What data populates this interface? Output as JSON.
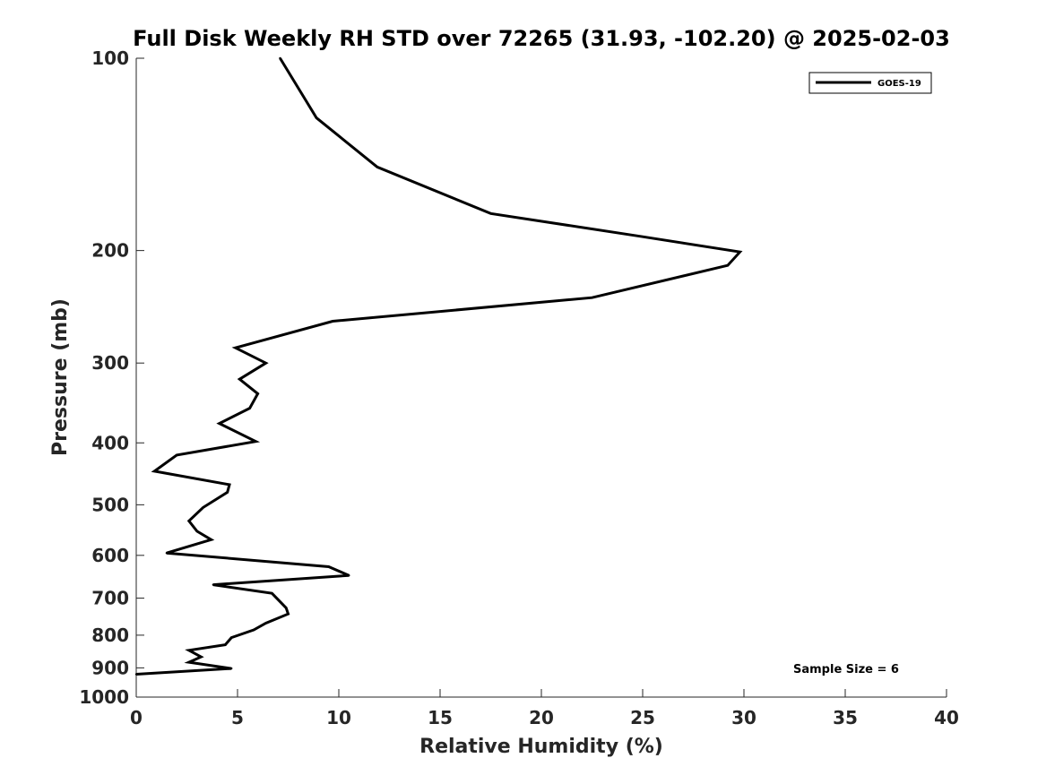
{
  "chart_data": {
    "type": "line",
    "title": "Full Disk Weekly RH STD over 72265 (31.93, -102.20) @ 2025-02-03",
    "xlabel": "Relative Humidity (%)",
    "ylabel": "Pressure (mb)",
    "xlim": [
      0,
      40
    ],
    "ylim": [
      100,
      1000
    ],
    "yscale": "log",
    "y_reversed": true,
    "xticks": [
      0,
      5,
      10,
      15,
      20,
      25,
      30,
      35,
      40
    ],
    "yticks": [
      100,
      200,
      300,
      400,
      500,
      600,
      700,
      800,
      900,
      1000
    ],
    "grid": false,
    "legend": {
      "placement": "top-right",
      "entries": [
        "GOES-19"
      ]
    },
    "annotation": "Sample Size = 6",
    "series": [
      {
        "name": "GOES-19",
        "color": "#000000",
        "points": [
          {
            "x": 7.1,
            "y": 100
          },
          {
            "x": 8.9,
            "y": 124
          },
          {
            "x": 11.9,
            "y": 148
          },
          {
            "x": 17.5,
            "y": 175
          },
          {
            "x": 24.9,
            "y": 190
          },
          {
            "x": 29.8,
            "y": 201
          },
          {
            "x": 29.2,
            "y": 211
          },
          {
            "x": 22.5,
            "y": 237
          },
          {
            "x": 9.7,
            "y": 258
          },
          {
            "x": 4.9,
            "y": 284
          },
          {
            "x": 6.4,
            "y": 300
          },
          {
            "x": 5.1,
            "y": 318
          },
          {
            "x": 6.0,
            "y": 335
          },
          {
            "x": 5.6,
            "y": 353
          },
          {
            "x": 4.1,
            "y": 373
          },
          {
            "x": 5.9,
            "y": 398
          },
          {
            "x": 2.0,
            "y": 418
          },
          {
            "x": 0.9,
            "y": 443
          },
          {
            "x": 4.6,
            "y": 465
          },
          {
            "x": 4.5,
            "y": 478
          },
          {
            "x": 3.3,
            "y": 505
          },
          {
            "x": 2.6,
            "y": 530
          },
          {
            "x": 3.0,
            "y": 550
          },
          {
            "x": 3.7,
            "y": 567
          },
          {
            "x": 1.5,
            "y": 595
          },
          {
            "x": 9.5,
            "y": 625
          },
          {
            "x": 10.5,
            "y": 645
          },
          {
            "x": 3.8,
            "y": 667
          },
          {
            "x": 6.7,
            "y": 688
          },
          {
            "x": 7.4,
            "y": 725
          },
          {
            "x": 7.5,
            "y": 741
          },
          {
            "x": 6.4,
            "y": 766
          },
          {
            "x": 5.8,
            "y": 785
          },
          {
            "x": 4.7,
            "y": 807
          },
          {
            "x": 4.4,
            "y": 828
          },
          {
            "x": 2.6,
            "y": 845
          },
          {
            "x": 3.2,
            "y": 865
          },
          {
            "x": 2.6,
            "y": 882
          },
          {
            "x": 4.7,
            "y": 902
          },
          {
            "x": 0.0,
            "y": 921
          }
        ]
      }
    ]
  }
}
